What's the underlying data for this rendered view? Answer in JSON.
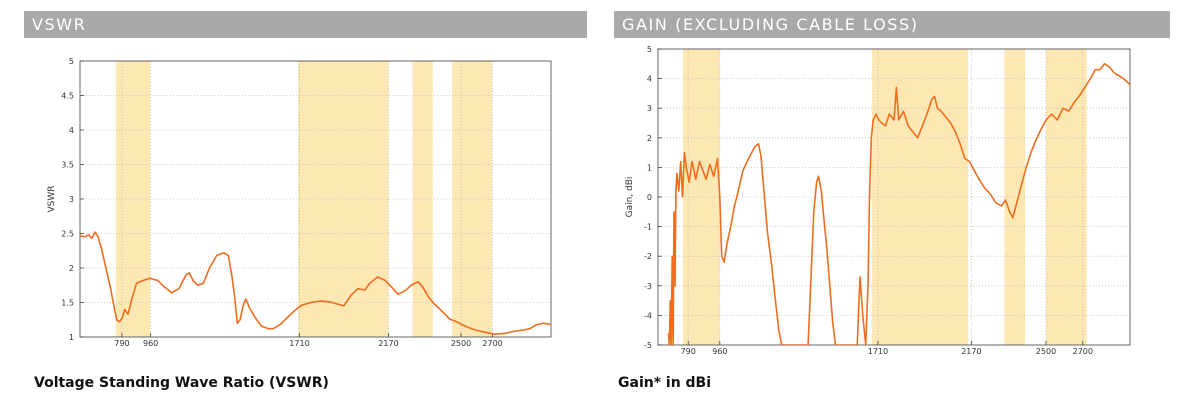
{
  "colors": {
    "header_bg": "#a9a9a9",
    "header_text": "#ffffff",
    "band": "#fde8b4",
    "line": "#ef6d1f",
    "grid": "#bdbdbd"
  },
  "headers": {
    "left": "VSWR",
    "right": "GAIN (EXCLUDING CABLE LOSS)"
  },
  "captions": {
    "left": "Voltage Standing Wave Ratio (VSWR)",
    "right": "Gain* in dBi"
  },
  "chart_data": [
    {
      "type": "line",
      "ylabel": "VSWR",
      "xlabel": "",
      "title": "",
      "ylim": [
        1,
        5
      ],
      "xlim": [
        0,
        1000
      ],
      "y_ticks": [
        1,
        1.5,
        2,
        2.5,
        3,
        3.5,
        4,
        4.5,
        5
      ],
      "y_tick_labels": [
        "1",
        "1.5",
        "2",
        "2.5",
        "3",
        "3.5",
        "4",
        "4.5",
        "5"
      ],
      "x_ticks": [
        {
          "label": "790",
          "pos": 89
        },
        {
          "label": "960",
          "pos": 150
        },
        {
          "label": "1710",
          "pos": 466
        },
        {
          "label": "2170",
          "pos": 655
        },
        {
          "label": "2500",
          "pos": 809
        },
        {
          "label": "2700",
          "pos": 876
        }
      ],
      "grid": true,
      "bands": [
        [
          76,
          149
        ],
        [
          463,
          655
        ],
        [
          706,
          749
        ],
        [
          790,
          875
        ]
      ],
      "series": [
        {
          "values": [
            [
              0,
              2.47
            ],
            [
              10,
              2.45
            ],
            [
              18,
              2.48
            ],
            [
              25,
              2.43
            ],
            [
              32,
              2.52
            ],
            [
              38,
              2.46
            ],
            [
              45,
              2.3
            ],
            [
              55,
              2.0
            ],
            [
              65,
              1.7
            ],
            [
              72,
              1.45
            ],
            [
              78,
              1.25
            ],
            [
              84,
              1.22
            ],
            [
              90,
              1.28
            ],
            [
              95,
              1.4
            ],
            [
              102,
              1.33
            ],
            [
              110,
              1.55
            ],
            [
              120,
              1.78
            ],
            [
              135,
              1.82
            ],
            [
              148,
              1.85
            ],
            [
              165,
              1.82
            ],
            [
              180,
              1.72
            ],
            [
              195,
              1.64
            ],
            [
              210,
              1.7
            ],
            [
              225,
              1.9
            ],
            [
              232,
              1.93
            ],
            [
              240,
              1.82
            ],
            [
              250,
              1.75
            ],
            [
              262,
              1.78
            ],
            [
              275,
              2.0
            ],
            [
              290,
              2.18
            ],
            [
              305,
              2.22
            ],
            [
              315,
              2.18
            ],
            [
              322,
              1.9
            ],
            [
              328,
              1.6
            ],
            [
              334,
              1.2
            ],
            [
              340,
              1.25
            ],
            [
              346,
              1.45
            ],
            [
              352,
              1.55
            ],
            [
              360,
              1.42
            ],
            [
              370,
              1.3
            ],
            [
              385,
              1.16
            ],
            [
              400,
              1.12
            ],
            [
              410,
              1.12
            ],
            [
              425,
              1.18
            ],
            [
              440,
              1.28
            ],
            [
              455,
              1.38
            ],
            [
              470,
              1.46
            ],
            [
              490,
              1.5
            ],
            [
              510,
              1.52
            ],
            [
              530,
              1.51
            ],
            [
              545,
              1.48
            ],
            [
              560,
              1.45
            ],
            [
              575,
              1.6
            ],
            [
              590,
              1.7
            ],
            [
              605,
              1.68
            ],
            [
              615,
              1.78
            ],
            [
              632,
              1.87
            ],
            [
              648,
              1.82
            ],
            [
              662,
              1.72
            ],
            [
              675,
              1.62
            ],
            [
              690,
              1.67
            ],
            [
              705,
              1.76
            ],
            [
              718,
              1.8
            ],
            [
              728,
              1.72
            ],
            [
              740,
              1.58
            ],
            [
              752,
              1.48
            ],
            [
              768,
              1.38
            ],
            [
              785,
              1.26
            ],
            [
              800,
              1.22
            ],
            [
              820,
              1.15
            ],
            [
              840,
              1.1
            ],
            [
              860,
              1.07
            ],
            [
              880,
              1.04
            ],
            [
              900,
              1.05
            ],
            [
              920,
              1.08
            ],
            [
              940,
              1.1
            ],
            [
              955,
              1.12
            ],
            [
              970,
              1.18
            ],
            [
              985,
              1.2
            ],
            [
              1000,
              1.18
            ]
          ]
        }
      ]
    },
    {
      "type": "line",
      "ylabel": "Gain, dBi",
      "xlabel": "",
      "title": "",
      "ylim": [
        -5,
        5
      ],
      "xlim": [
        0,
        1000
      ],
      "y_ticks": [
        -5,
        -4,
        -3,
        -2,
        -1,
        0,
        1,
        2,
        3,
        4,
        5
      ],
      "y_tick_labels": [
        "-5",
        "-4",
        "-3",
        "-2",
        "-1",
        "0",
        "1",
        "2",
        "3",
        "4",
        "5"
      ],
      "x_ticks": [
        {
          "label": "790",
          "pos": 64
        },
        {
          "label": "960",
          "pos": 131
        },
        {
          "label": "1710",
          "pos": 466
        },
        {
          "label": "2170",
          "pos": 664
        },
        {
          "label": "2500",
          "pos": 822
        },
        {
          "label": "2700",
          "pos": 900
        }
      ],
      "grid": true,
      "bands": [
        [
          53,
          131
        ],
        [
          453,
          657
        ],
        [
          734,
          778
        ],
        [
          822,
          908
        ]
      ],
      "series": [
        {
          "values": [
            [
              22,
              -4.6
            ],
            [
              24,
              -5.0
            ],
            [
              26,
              -3.5
            ],
            [
              28,
              -5.0
            ],
            [
              30,
              -2.0
            ],
            [
              32,
              -5.0
            ],
            [
              34,
              -0.5
            ],
            [
              36,
              -3.0
            ],
            [
              38,
              0.2
            ],
            [
              40,
              0.8
            ],
            [
              44,
              0.2
            ],
            [
              48,
              1.2
            ],
            [
              52,
              0.0
            ],
            [
              56,
              1.5
            ],
            [
              60,
              1.0
            ],
            [
              66,
              0.5
            ],
            [
              72,
              1.2
            ],
            [
              80,
              0.6
            ],
            [
              88,
              1.2
            ],
            [
              95,
              0.9
            ],
            [
              102,
              0.6
            ],
            [
              110,
              1.1
            ],
            [
              118,
              0.7
            ],
            [
              126,
              1.3
            ],
            [
              131,
              0.0
            ],
            [
              135,
              -2.0
            ],
            [
              140,
              -2.2
            ],
            [
              146,
              -1.6
            ],
            [
              154,
              -1.0
            ],
            [
              162,
              -0.3
            ],
            [
              170,
              0.2
            ],
            [
              180,
              0.9
            ],
            [
              192,
              1.3
            ],
            [
              205,
              1.7
            ],
            [
              213,
              1.8
            ],
            [
              218,
              1.4
            ],
            [
              224,
              0.3
            ],
            [
              232,
              -1.2
            ],
            [
              240,
              -2.2
            ],
            [
              248,
              -3.4
            ],
            [
              256,
              -4.5
            ],
            [
              262,
              -5.0
            ],
            [
              318,
              -5.0
            ],
            [
              324,
              -2.8
            ],
            [
              330,
              -0.5
            ],
            [
              336,
              0.5
            ],
            [
              340,
              0.7
            ],
            [
              346,
              0.2
            ],
            [
              352,
              -0.8
            ],
            [
              358,
              -1.8
            ],
            [
              364,
              -3.0
            ],
            [
              370,
              -4.2
            ],
            [
              376,
              -5.0
            ],
            [
              422,
              -5.0
            ],
            [
              428,
              -2.7
            ],
            [
              434,
              -4.0
            ],
            [
              440,
              -5.0
            ],
            [
              445,
              -3.0
            ],
            [
              448,
              0.0
            ],
            [
              452,
              2.0
            ],
            [
              456,
              2.6
            ],
            [
              462,
              2.8
            ],
            [
              468,
              2.6
            ],
            [
              474,
              2.5
            ],
            [
              482,
              2.4
            ],
            [
              490,
              2.8
            ],
            [
              500,
              2.6
            ],
            [
              505,
              3.7
            ],
            [
              510,
              2.6
            ],
            [
              520,
              2.9
            ],
            [
              530,
              2.4
            ],
            [
              540,
              2.2
            ],
            [
              550,
              2.0
            ],
            [
              560,
              2.4
            ],
            [
              570,
              2.8
            ],
            [
              580,
              3.3
            ],
            [
              586,
              3.4
            ],
            [
              592,
              3.0
            ],
            [
              600,
              2.9
            ],
            [
              610,
              2.7
            ],
            [
              620,
              2.5
            ],
            [
              630,
              2.2
            ],
            [
              640,
              1.8
            ],
            [
              650,
              1.3
            ],
            [
              660,
              1.2
            ],
            [
              670,
              0.9
            ],
            [
              680,
              0.6
            ],
            [
              692,
              0.3
            ],
            [
              704,
              0.1
            ],
            [
              716,
              -0.2
            ],
            [
              728,
              -0.3
            ],
            [
              736,
              -0.1
            ],
            [
              745,
              -0.5
            ],
            [
              752,
              -0.7
            ],
            [
              760,
              -0.2
            ],
            [
              770,
              0.4
            ],
            [
              780,
              1.0
            ],
            [
              790,
              1.5
            ],
            [
              800,
              1.9
            ],
            [
              812,
              2.3
            ],
            [
              822,
              2.6
            ],
            [
              834,
              2.8
            ],
            [
              846,
              2.6
            ],
            [
              858,
              3.0
            ],
            [
              870,
              2.9
            ],
            [
              882,
              3.2
            ],
            [
              892,
              3.4
            ],
            [
              904,
              3.7
            ],
            [
              916,
              4.0
            ],
            [
              926,
              4.3
            ],
            [
              936,
              4.3
            ],
            [
              946,
              4.5
            ],
            [
              956,
              4.4
            ],
            [
              966,
              4.2
            ],
            [
              976,
              4.1
            ],
            [
              986,
              4.0
            ],
            [
              1000,
              3.8
            ]
          ]
        }
      ]
    }
  ]
}
